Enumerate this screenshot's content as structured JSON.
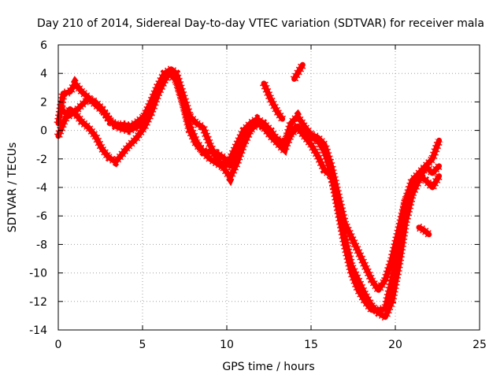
{
  "chart_data": {
    "type": "scatter",
    "title": "Day 210 of 2014, Sidereal Day-to-day VTEC variation (SDTVAR) for receiver mala",
    "xlabel": "GPS time / hours",
    "ylabel": "SDTVAR / TECUs",
    "xlim": [
      0,
      25
    ],
    "ylim": [
      -14,
      6
    ],
    "xticks": [
      0,
      5,
      10,
      15,
      20,
      25
    ],
    "yticks": [
      -14,
      -12,
      -10,
      -8,
      -6,
      -4,
      -2,
      0,
      2,
      4,
      6
    ],
    "grid": true,
    "marker": "+",
    "color": "#ff0000",
    "series": [
      {
        "x": [
          0.0,
          0.3,
          0.7,
          1.0,
          1.4,
          1.8,
          2.2,
          2.7,
          3.1,
          3.5,
          3.9,
          4.3,
          4.7,
          5.1,
          5.5,
          5.9,
          6.3,
          6.7,
          7.0,
          7.4,
          7.8,
          8.2,
          8.6,
          9.0,
          9.4,
          9.8,
          10.2,
          10.6,
          11.0,
          11.4,
          11.8,
          12.2,
          12.6,
          13.0,
          13.4,
          13.8,
          14.2,
          14.6,
          15.0,
          15.4,
          15.8,
          16.2,
          16.6,
          17.0,
          17.4,
          17.8,
          18.2,
          18.6,
          19.0,
          19.4,
          19.8,
          20.2,
          20.6,
          21.0,
          21.4,
          21.8,
          22.2,
          22.6
        ],
        "y": [
          0.5,
          2.6,
          2.7,
          3.3,
          2.7,
          2.3,
          1.8,
          1.3,
          0.6,
          0.4,
          0.4,
          0.3,
          0.6,
          1.0,
          2.0,
          3.1,
          4.0,
          4.3,
          4.0,
          2.5,
          1.0,
          0.5,
          0.2,
          -1.0,
          -2.0,
          -2.5,
          -2.0,
          -1.0,
          0.0,
          0.5,
          0.8,
          0.5,
          0.0,
          -0.7,
          -1.2,
          0.5,
          1.0,
          0.3,
          -0.3,
          -0.5,
          -1.0,
          -2.5,
          -4.5,
          -6.5,
          -7.5,
          -8.5,
          -9.5,
          -10.5,
          -11.2,
          -10.5,
          -9.0,
          -7.0,
          -5.0,
          -4.0,
          -3.2,
          -3.5,
          -4.0,
          -3.2
        ]
      },
      {
        "x": [
          0.0,
          0.3,
          0.7,
          1.0,
          1.4,
          1.8,
          2.2,
          2.6,
          3.0,
          3.4,
          3.7,
          4.1,
          4.6,
          5.1,
          5.5,
          5.9,
          6.3,
          6.7,
          7.0,
          7.4,
          7.8,
          8.2,
          8.6,
          9.0,
          9.4,
          9.8,
          10.2,
          10.6,
          11.0,
          11.4,
          11.8,
          12.2,
          12.6,
          13.0,
          13.4,
          13.8,
          14.2,
          14.6,
          15.0,
          15.4,
          15.8,
          16.2,
          16.6,
          17.0,
          17.4,
          17.8,
          18.2,
          18.6,
          19.0,
          19.4,
          19.8,
          20.2,
          20.6,
          21.0,
          21.4,
          21.8,
          22.2,
          22.6
        ],
        "y": [
          -0.4,
          0.5,
          1.5,
          1.2,
          0.6,
          0.2,
          -0.4,
          -1.3,
          -1.9,
          -2.2,
          -1.8,
          -1.2,
          -0.6,
          0.2,
          1.2,
          2.5,
          3.5,
          4.2,
          3.7,
          2.0,
          0.3,
          -0.8,
          -1.5,
          -2.0,
          -2.3,
          -2.6,
          -3.3,
          -2.3,
          -1.0,
          0.0,
          0.5,
          0.2,
          -0.4,
          -0.9,
          -1.4,
          -0.3,
          0.2,
          -0.4,
          -1.0,
          -1.8,
          -2.8,
          -3.2,
          -5.0,
          -7.5,
          -9.5,
          -10.5,
          -11.5,
          -12.3,
          -12.8,
          -13.1,
          -12.0,
          -9.5,
          -6.5,
          -4.5,
          -3.5,
          -2.5,
          -2.0,
          -0.7
        ]
      },
      {
        "x": [
          0.2,
          0.6,
          1.0,
          1.4,
          1.8,
          2.2,
          2.6,
          3.0,
          3.4,
          3.8,
          4.2,
          4.6,
          5.0,
          5.4,
          5.8,
          6.2,
          6.6,
          7.0,
          7.4,
          7.8,
          8.2,
          8.6,
          9.0,
          9.4,
          9.8,
          10.2,
          10.6,
          11.0,
          11.4,
          11.8,
          12.2,
          12.6,
          13.0,
          13.4,
          13.8,
          14.2,
          14.6,
          15.0,
          15.4,
          15.8,
          16.2,
          16.6,
          17.0,
          17.4,
          17.8,
          18.2,
          18.6,
          19.0,
          19.4,
          19.8,
          20.2,
          20.6,
          21.0,
          21.4,
          21.8,
          22.2,
          22.6
        ],
        "y": [
          1.5,
          1.0,
          1.3,
          1.8,
          2.2,
          2.0,
          1.5,
          0.8,
          0.3,
          0.1,
          0.0,
          0.2,
          0.5,
          1.5,
          2.5,
          3.4,
          4.0,
          3.5,
          2.0,
          0.0,
          -1.0,
          -1.5,
          -1.5,
          -1.6,
          -1.9,
          -2.5,
          -1.5,
          -0.5,
          0.3,
          0.6,
          0.2,
          -0.3,
          -0.6,
          -0.9,
          0.0,
          0.3,
          -0.3,
          -0.5,
          -0.7,
          -1.5,
          -3.0,
          -5.5,
          -8.0,
          -10.0,
          -11.2,
          -12.0,
          -12.6,
          -12.6,
          -12.5,
          -10.5,
          -8.0,
          -5.0,
          -3.5,
          -3.0,
          -2.5,
          -3.0,
          -2.5
        ]
      }
    ],
    "segments": [
      {
        "x": [
          12.2,
          12.6,
          13.0,
          13.3
        ],
        "y": [
          3.3,
          2.2,
          1.3,
          0.8
        ]
      },
      {
        "x": [
          14.0,
          14.25,
          14.5
        ],
        "y": [
          3.6,
          4.1,
          4.6
        ]
      },
      {
        "x": [
          21.4,
          21.7,
          22.0
        ],
        "y": [
          -6.8,
          -7.0,
          -7.3
        ]
      }
    ]
  }
}
